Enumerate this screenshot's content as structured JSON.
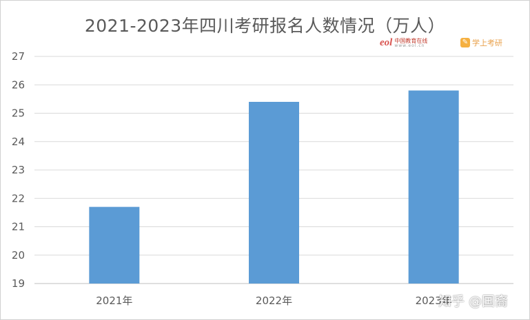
{
  "chart_data": {
    "type": "bar",
    "title": "2021-2023年四川考研报名人数情况（万人）",
    "categories": [
      "2021年",
      "2022年",
      "2023年"
    ],
    "values": [
      21.7,
      25.4,
      25.8
    ],
    "ylim": [
      19,
      27
    ],
    "yticks": [
      "19",
      "20",
      "21",
      "22",
      "23",
      "24",
      "25",
      "26",
      "27"
    ],
    "xlabel": "",
    "ylabel": "",
    "grid": true,
    "legend": "none",
    "bar_color": "#5b9bd5",
    "grid_color": "#d9d9d9"
  },
  "watermarks": {
    "eol_logo": "eol",
    "eol_name": "中国教育在线",
    "eol_url": "www.eol.cn",
    "xuehai_name": "学上考研",
    "zhihu": "知乎 @国裔"
  }
}
